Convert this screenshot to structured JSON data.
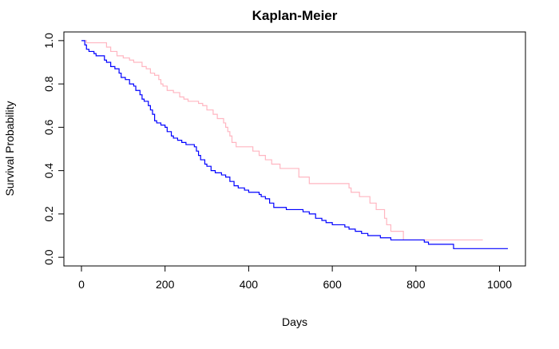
{
  "chart_data": {
    "type": "line",
    "step": true,
    "title": "Kaplan-Meier",
    "xlabel": "Days",
    "ylabel": "Survival Probability",
    "xlim": [
      -42,
      1062
    ],
    "ylim": [
      -0.04,
      1.04
    ],
    "x_ticks": [
      0,
      200,
      400,
      600,
      800,
      1000
    ],
    "y_ticks": [
      0.0,
      0.2,
      0.4,
      0.6,
      0.8,
      1.0
    ],
    "x_tick_labels": [
      "0",
      "200",
      "400",
      "600",
      "800",
      "1000"
    ],
    "y_tick_labels": [
      "0.0",
      "0.2",
      "0.4",
      "0.6",
      "0.8",
      "1.0"
    ],
    "legend": "none",
    "grid": false,
    "series": [
      {
        "color": "#ffb6c1",
        "points": [
          [
            5,
            1.0
          ],
          [
            12,
            0.99
          ],
          [
            60,
            0.97
          ],
          [
            70,
            0.95
          ],
          [
            85,
            0.93
          ],
          [
            100,
            0.92
          ],
          [
            115,
            0.91
          ],
          [
            125,
            0.9
          ],
          [
            145,
            0.88
          ],
          [
            155,
            0.87
          ],
          [
            165,
            0.85
          ],
          [
            175,
            0.84
          ],
          [
            185,
            0.82
          ],
          [
            190,
            0.8
          ],
          [
            195,
            0.79
          ],
          [
            205,
            0.77
          ],
          [
            220,
            0.76
          ],
          [
            235,
            0.74
          ],
          [
            245,
            0.73
          ],
          [
            255,
            0.72
          ],
          [
            280,
            0.71
          ],
          [
            290,
            0.7
          ],
          [
            300,
            0.68
          ],
          [
            315,
            0.66
          ],
          [
            325,
            0.64
          ],
          [
            340,
            0.62
          ],
          [
            345,
            0.6
          ],
          [
            350,
            0.58
          ],
          [
            355,
            0.56
          ],
          [
            360,
            0.53
          ],
          [
            370,
            0.51
          ],
          [
            410,
            0.49
          ],
          [
            425,
            0.47
          ],
          [
            440,
            0.45
          ],
          [
            455,
            0.43
          ],
          [
            475,
            0.41
          ],
          [
            520,
            0.37
          ],
          [
            545,
            0.34
          ],
          [
            640,
            0.32
          ],
          [
            645,
            0.3
          ],
          [
            665,
            0.28
          ],
          [
            690,
            0.25
          ],
          [
            705,
            0.22
          ],
          [
            725,
            0.18
          ],
          [
            730,
            0.15
          ],
          [
            740,
            0.12
          ],
          [
            770,
            0.08
          ],
          [
            960,
            0.08
          ]
        ]
      },
      {
        "color": "#0000ff",
        "points": [
          [
            0,
            1.0
          ],
          [
            8,
            0.98
          ],
          [
            12,
            0.96
          ],
          [
            18,
            0.95
          ],
          [
            30,
            0.94
          ],
          [
            35,
            0.93
          ],
          [
            55,
            0.91
          ],
          [
            60,
            0.9
          ],
          [
            70,
            0.88
          ],
          [
            80,
            0.87
          ],
          [
            90,
            0.85
          ],
          [
            95,
            0.83
          ],
          [
            105,
            0.82
          ],
          [
            115,
            0.8
          ],
          [
            125,
            0.79
          ],
          [
            130,
            0.77
          ],
          [
            140,
            0.75
          ],
          [
            145,
            0.73
          ],
          [
            150,
            0.72
          ],
          [
            160,
            0.7
          ],
          [
            165,
            0.68
          ],
          [
            170,
            0.66
          ],
          [
            175,
            0.63
          ],
          [
            180,
            0.62
          ],
          [
            190,
            0.61
          ],
          [
            200,
            0.6
          ],
          [
            205,
            0.58
          ],
          [
            215,
            0.56
          ],
          [
            220,
            0.55
          ],
          [
            230,
            0.54
          ],
          [
            240,
            0.53
          ],
          [
            250,
            0.52
          ],
          [
            270,
            0.51
          ],
          [
            275,
            0.49
          ],
          [
            280,
            0.47
          ],
          [
            285,
            0.45
          ],
          [
            295,
            0.43
          ],
          [
            300,
            0.42
          ],
          [
            310,
            0.4
          ],
          [
            320,
            0.39
          ],
          [
            335,
            0.38
          ],
          [
            345,
            0.37
          ],
          [
            355,
            0.35
          ],
          [
            365,
            0.33
          ],
          [
            375,
            0.32
          ],
          [
            390,
            0.31
          ],
          [
            400,
            0.3
          ],
          [
            425,
            0.29
          ],
          [
            430,
            0.28
          ],
          [
            440,
            0.27
          ],
          [
            450,
            0.25
          ],
          [
            460,
            0.23
          ],
          [
            490,
            0.22
          ],
          [
            530,
            0.21
          ],
          [
            545,
            0.2
          ],
          [
            560,
            0.18
          ],
          [
            575,
            0.17
          ],
          [
            585,
            0.16
          ],
          [
            600,
            0.15
          ],
          [
            630,
            0.14
          ],
          [
            640,
            0.13
          ],
          [
            655,
            0.12
          ],
          [
            670,
            0.11
          ],
          [
            685,
            0.1
          ],
          [
            715,
            0.09
          ],
          [
            740,
            0.08
          ],
          [
            820,
            0.07
          ],
          [
            830,
            0.06
          ],
          [
            890,
            0.04
          ],
          [
            1020,
            0.04
          ]
        ]
      }
    ]
  }
}
